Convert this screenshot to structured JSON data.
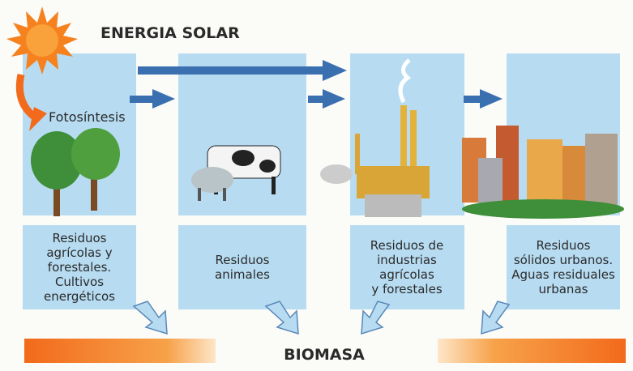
{
  "header": {
    "title": "ENERGIA SOLAR"
  },
  "photosynthesis": "Fotosíntesis",
  "sources": [
    {
      "lines": [
        "Residuos",
        "agrícolas y",
        "forestales.",
        "Cultivos",
        "energéticos"
      ]
    },
    {
      "lines": [
        "Residuos",
        "animales"
      ]
    },
    {
      "lines": [
        "Residuos de",
        "industrias",
        "agrícolas",
        "y forestales"
      ]
    },
    {
      "lines": [
        "Residuos",
        "sólidos urbanos.",
        "Aguas residuales",
        "urbanas"
      ]
    }
  ],
  "footer": {
    "label": "BIOMASA"
  }
}
